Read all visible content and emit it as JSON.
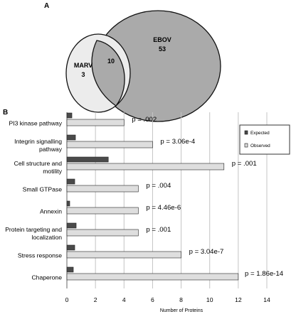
{
  "panel_a": {
    "label": "A",
    "venn": {
      "sets": [
        {
          "name": "EBOV",
          "unique_count": "53",
          "color": "#aaaaaa"
        },
        {
          "name": "MARV",
          "unique_count": "3",
          "color": "#ececec"
        }
      ],
      "overlap_count": "10"
    }
  },
  "panel_b": {
    "label": "B"
  },
  "chart_data": {
    "type": "bar",
    "orientation": "horizontal",
    "categories": [
      [
        "PI3 kinase pathway"
      ],
      [
        "Integrin signalling",
        "pathway"
      ],
      [
        "Cell structure and",
        "motility"
      ],
      [
        "Small GTPase"
      ],
      [
        "Annexin"
      ],
      [
        "Protein targeting and",
        "localization"
      ],
      [
        "Stress response"
      ],
      [
        "Chaperone"
      ]
    ],
    "series": [
      {
        "name": "Expected",
        "color": "#4a4a4a",
        "values": [
          0.35,
          0.6,
          2.9,
          0.55,
          0.2,
          0.65,
          0.55,
          0.45
        ]
      },
      {
        "name": "Observed",
        "color": "#dedede",
        "values": [
          4,
          6,
          11,
          5,
          5,
          5,
          8,
          12
        ]
      }
    ],
    "annotations": [
      "p = .002",
      "p = 3.06e-4",
      "p = .001",
      "p = .004",
      "p = 4.46e-6",
      "p = .001",
      "p = 3.04e-7",
      "p = 1.86e-14"
    ],
    "xlabel": "Number of Proteins",
    "xlim": [
      0,
      14
    ],
    "xticks": [
      0,
      2,
      4,
      6,
      8,
      10,
      12,
      14
    ],
    "grid": "vertical",
    "legend_position": "top-right"
  }
}
